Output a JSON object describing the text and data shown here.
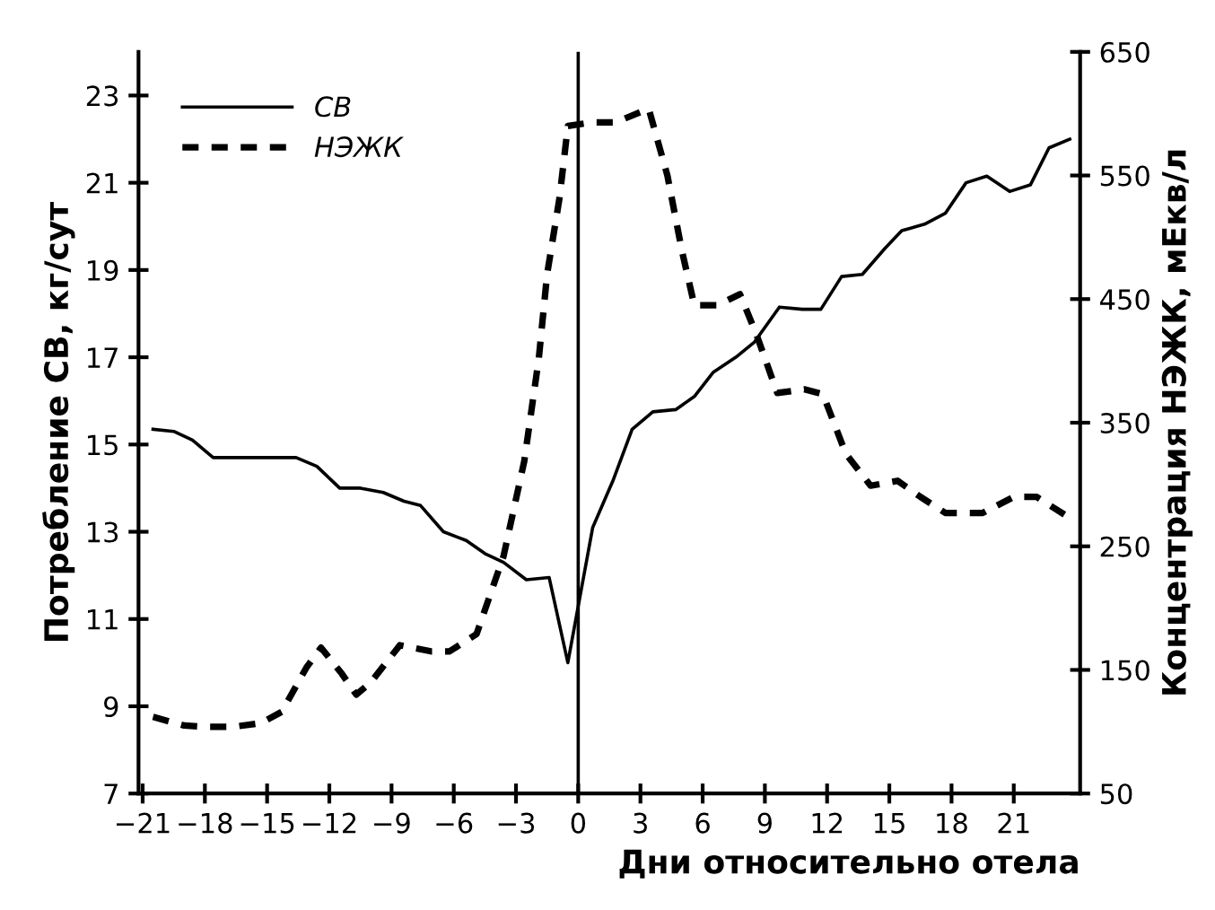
{
  "chart_data": {
    "type": "line",
    "xlabel": "Дни относительно отела",
    "ylabel": "Потребление СВ, кг/сут",
    "y2label": "Концентрация НЭЖК, мЕкв/л",
    "xlim": [
      -21.2,
      24.2
    ],
    "ylim": [
      7,
      24
    ],
    "y2lim": [
      50,
      650
    ],
    "xticks": [
      {
        "value": -21,
        "label": "−21"
      },
      {
        "value": -18,
        "label": "−18"
      },
      {
        "value": -15,
        "label": "−15"
      },
      {
        "value": -12,
        "label": "−12"
      },
      {
        "value": -9,
        "label": "−9"
      },
      {
        "value": -6,
        "label": "−6"
      },
      {
        "value": -3,
        "label": "−3"
      },
      0,
      3,
      6,
      9,
      12,
      15,
      18,
      21
    ],
    "yticks": [
      7,
      9,
      11,
      13,
      15,
      17,
      19,
      21,
      23
    ],
    "y2ticks": [
      50,
      150,
      250,
      350,
      450,
      550,
      650
    ],
    "grid": false,
    "legend": "top left",
    "marker": "none",
    "ref_lines": [
      {
        "axis": "x",
        "value": 0,
        "color": "#000000"
      }
    ],
    "series": [
      {
        "name": "СВ",
        "color": "#000000",
        "line_style": "solid",
        "axis": "y",
        "x": [
          -20.5,
          -19.5,
          -18.6,
          -17.6,
          -16.5,
          -15.5,
          -14.5,
          -13.6,
          -12.6,
          -11.5,
          -10.5,
          -9.4,
          -8.4,
          -7.6,
          -6.5,
          -5.4,
          -4.5,
          -3.6,
          -2.5,
          -1.4,
          -0.5,
          0.7,
          1.7,
          2.6,
          3.6,
          4.7,
          5.6,
          6.5,
          7.6,
          8.5,
          9.7,
          10.8,
          11.7,
          12.7,
          13.7,
          14.8,
          15.6,
          16.7,
          17.7,
          18.7,
          19.7,
          20.8,
          21.8,
          22.7,
          23.7
        ],
        "values": [
          15.35,
          15.3,
          15.1,
          14.7,
          14.7,
          14.7,
          14.7,
          14.7,
          14.5,
          14.0,
          14.0,
          13.9,
          13.7,
          13.6,
          13.0,
          12.8,
          12.5,
          12.3,
          11.9,
          11.95,
          10.0,
          13.1,
          14.2,
          15.35,
          15.75,
          15.8,
          16.1,
          16.65,
          17.0,
          17.35,
          18.15,
          18.1,
          18.1,
          18.85,
          18.9,
          19.5,
          19.9,
          20.05,
          20.3,
          21.0,
          21.15,
          20.8,
          20.95,
          21.8,
          22.0
        ]
      },
      {
        "name": "НЭЖК",
        "color": "#000000",
        "line_style": "dashed",
        "axis": "y2",
        "x": [
          -20.5,
          -19.0,
          -18.1,
          -16.6,
          -15.3,
          -14.3,
          -13.1,
          -12.4,
          -11.4,
          -10.7,
          -10.0,
          -8.6,
          -7.1,
          -6.2,
          -4.9,
          -4.2,
          -3.6,
          -2.6,
          -1.9,
          -1.5,
          -0.9,
          -0.5,
          0.7,
          1.8,
          3.4,
          4.3,
          5.0,
          5.6,
          6.7,
          7.8,
          8.6,
          9.6,
          10.9,
          11.8,
          12.9,
          14.1,
          15.4,
          16.5,
          17.7,
          19.5,
          21.0,
          22.1,
          23.6
        ],
        "values": [
          112,
          105,
          104,
          104,
          107,
          116,
          152,
          168,
          147,
          130,
          140,
          170,
          165,
          165,
          179,
          213,
          242,
          319,
          402,
          470,
          532,
          590,
          593,
          593,
          604,
          550,
          489,
          445,
          445,
          454,
          421,
          374,
          377,
          373,
          325,
          299,
          303,
          290,
          277,
          277,
          290,
          290,
          274
        ]
      }
    ]
  }
}
